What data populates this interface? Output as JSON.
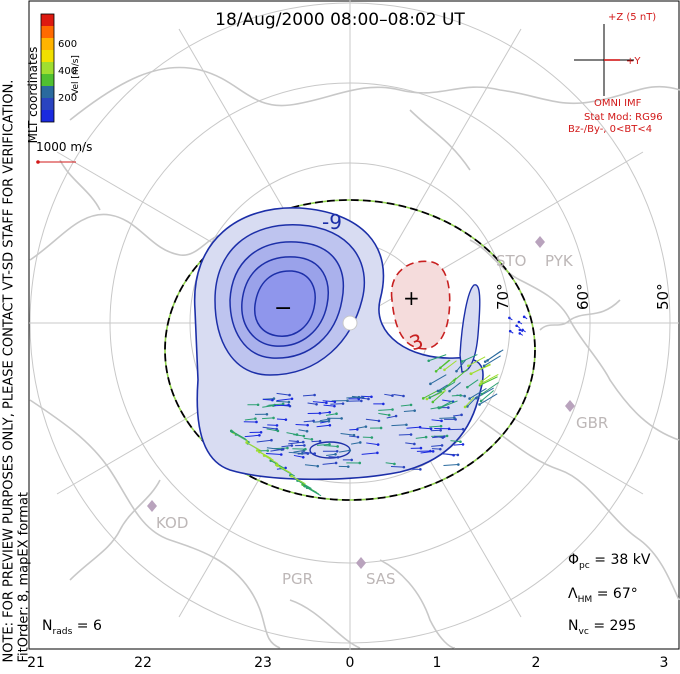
{
  "title": "18/Aug/2000  08:00–08:02  UT",
  "side_note_1": "NOTE: FOR PREVIEW PURPOSES ONLY, PLEASE CONTACT VT-SD STAFF FOR VERIFICATION.",
  "side_note_2": "FitOrder: 8,  mapEX format",
  "mlt_coord_label": "MLT coordinates",
  "colorbar": {
    "title": "Vel [m/s]",
    "ticks": [
      "600",
      "400",
      "200"
    ],
    "colors": [
      "#dd1a10",
      "#ff6a00",
      "#ffb400",
      "#f0e000",
      "#a0de30",
      "#50c030",
      "#2aa070",
      "#2a6a9e",
      "#1a2adf"
    ]
  },
  "velocity_reference": "1000 m/s",
  "latitude_labels": [
    "70°",
    "60°",
    "50°"
  ],
  "stations": [
    "STO",
    "PYK",
    "GBR",
    "KOD",
    "PGR",
    "SAS"
  ],
  "contour_labels": [
    "-9",
    "3"
  ],
  "potential_markers": [
    "−",
    "+"
  ],
  "imf": {
    "z_label": "+Z (5 nT)",
    "y_label": "+Y",
    "source": "OMNI IMF",
    "model": "Stat Mod: RG96",
    "condition": "Bz-/By-, 0<BT<4"
  },
  "stats": {
    "phi_pc": "38 kV",
    "lambda_hm": "67°",
    "n_vc": "295",
    "n_rads": "6"
  },
  "mlt_ticks": [
    "21",
    "22",
    "23",
    "0",
    "1",
    "2",
    "3"
  ],
  "colors": {
    "contour_negative": "#1c2fa8",
    "fill_negative": "#d8dcf2",
    "fill_core": "#8f96ec",
    "contour_positive": "#c82020",
    "fill_positive": "#f5dcdc",
    "map_lines": "#c8c8c8",
    "imf_red": "#d21818"
  }
}
